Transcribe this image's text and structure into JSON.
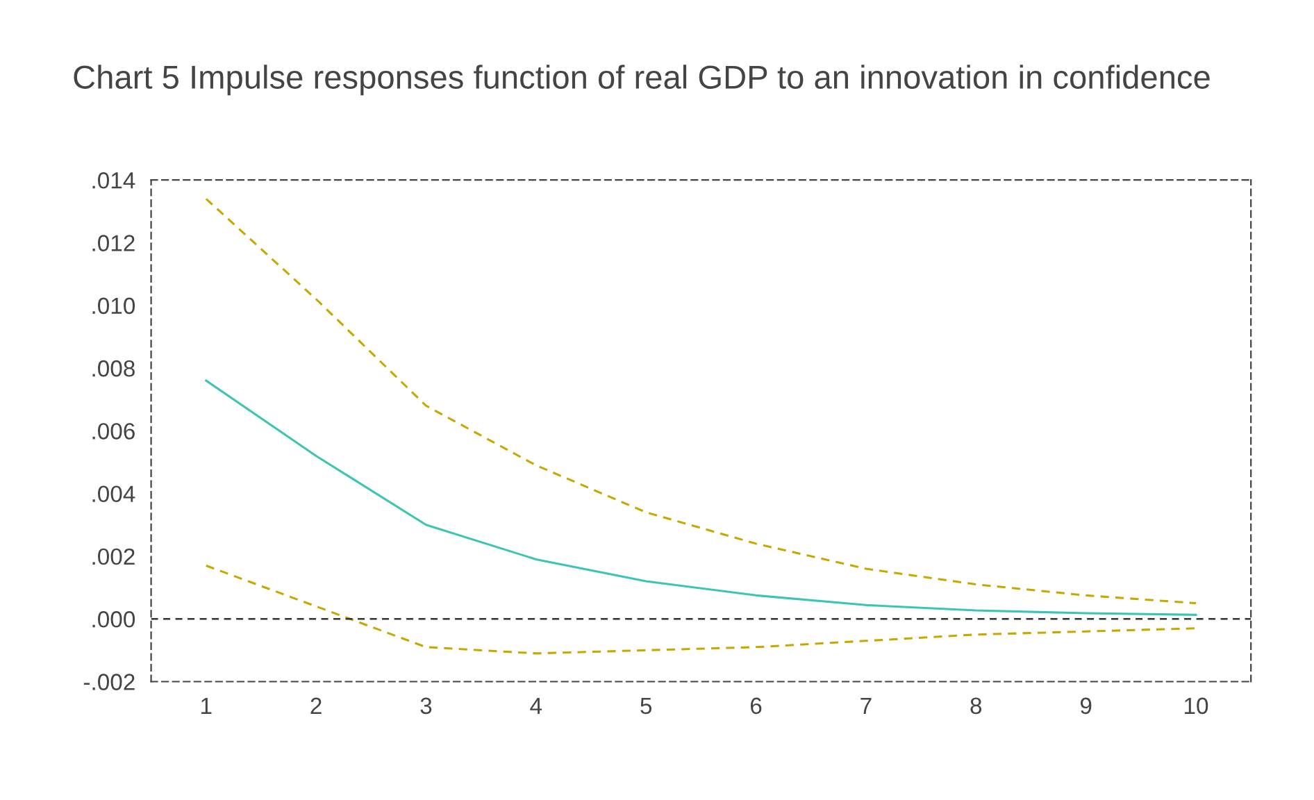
{
  "chart_data": {
    "type": "line",
    "title": "Chart 5 Impulse responses function of real GDP to an innovation in confidence",
    "categories": [
      "1",
      "2",
      "3",
      "4",
      "5",
      "6",
      "7",
      "8",
      "9",
      "10"
    ],
    "series": [
      {
        "color": "#3cc4b4",
        "line_style": "solid",
        "values": [
          0.0076,
          0.0052,
          0.003,
          0.0019,
          0.0012,
          0.00075,
          0.00044,
          0.00027,
          0.00018,
          0.00013
        ]
      },
      {
        "color": "#c8a800",
        "line_style": "dashed",
        "values": [
          0.0134,
          0.0102,
          0.0068,
          0.0049,
          0.0034,
          0.0024,
          0.0016,
          0.0011,
          0.00075,
          0.0005
        ]
      },
      {
        "color": "#c8a800",
        "line_style": "dashed",
        "values": [
          0.0017,
          0.0004,
          -0.0009,
          -0.0011,
          -0.001,
          -0.0009,
          -0.0007,
          -0.0005,
          -0.0004,
          -0.0003
        ]
      }
    ],
    "ylim": [
      -0.002,
      0.014
    ],
    "yticks": [
      {
        "value": -0.002,
        "label": "-.002"
      },
      {
        "value": 0,
        "label": ".000"
      },
      {
        "value": 0.002,
        "label": ".002"
      },
      {
        "value": 0.004,
        "label": ".004"
      },
      {
        "value": 0.006,
        "label": ".006"
      },
      {
        "value": 0.008,
        "label": ".008"
      },
      {
        "value": 0.01,
        "label": ".010"
      },
      {
        "value": 0.012,
        "label": ".012"
      },
      {
        "value": 0.014,
        "label": ".014"
      }
    ],
    "ref_lines": [
      {
        "axis": "y",
        "value": 0,
        "color": "#333333",
        "line_style": "dashed"
      }
    ],
    "grid": false,
    "legend": false,
    "marker": "none"
  }
}
